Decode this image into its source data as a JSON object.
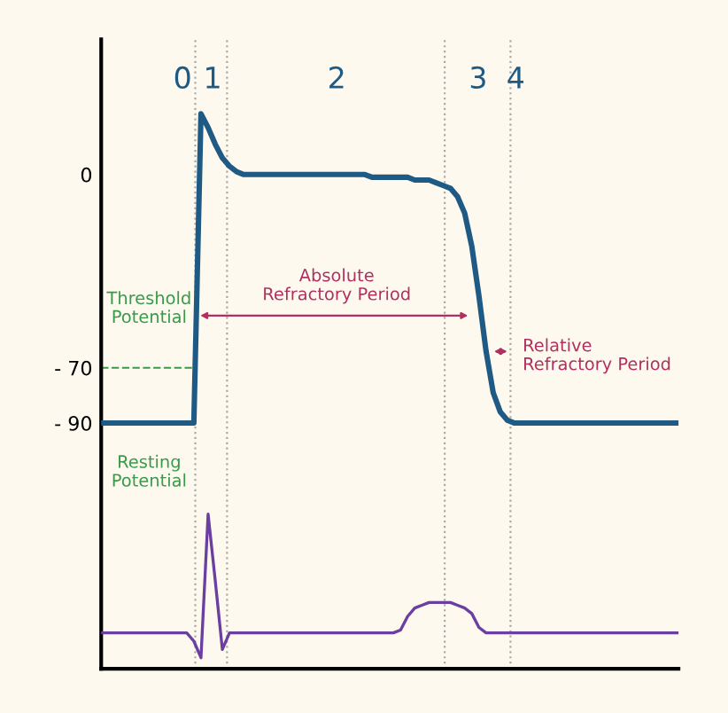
{
  "chart_data": {
    "type": "line",
    "categories": [
      null,
      null,
      null,
      null,
      null,
      null,
      null,
      null,
      null,
      null,
      null,
      null,
      null,
      null,
      null,
      null,
      null,
      null,
      null,
      null,
      null,
      null,
      null,
      null,
      null,
      null,
      null,
      null,
      null,
      null,
      null,
      null,
      null,
      null,
      null,
      null,
      null,
      null,
      null,
      null,
      null,
      null,
      null,
      null,
      null,
      null,
      null,
      null,
      null,
      null,
      null,
      null,
      null,
      null,
      null,
      null,
      null,
      null,
      null,
      null,
      null,
      null,
      null,
      null,
      null,
      null,
      null,
      null,
      null,
      null,
      null,
      null,
      null,
      null,
      null,
      null,
      null,
      null,
      null,
      null,
      null,
      null
    ],
    "ylim": [
      -179,
      49
    ],
    "yticks": [
      {
        "value": 0,
        "label": "0"
      },
      {
        "value": -70,
        "label": "- 70"
      },
      {
        "value": -90,
        "label": "- 90"
      }
    ],
    "tick_labels": "y",
    "grid": false,
    "legend": false,
    "line_style": "solid",
    "marker": "none",
    "series": [
      {
        "color": "#1f5a85",
        "values": [
          -90,
          -90,
          -90,
          -90,
          -90,
          -90,
          -90,
          -90,
          -90,
          -90,
          -90,
          -90,
          -90,
          -90,
          22,
          17,
          11,
          6,
          3,
          1,
          0,
          0,
          0,
          0,
          0,
          0,
          0,
          0,
          0,
          0,
          0,
          0,
          0,
          0,
          0,
          0,
          0,
          0,
          -1,
          -1,
          -1,
          -1,
          -1,
          -1,
          -2,
          -2,
          -2,
          -3,
          -4,
          -5,
          -8,
          -14,
          -26,
          -44,
          -64,
          -79,
          -86,
          -89,
          -90,
          -90,
          -90,
          -90,
          -90,
          -90,
          -90,
          -90,
          -90,
          -90,
          -90,
          -90,
          -90,
          -90,
          -90,
          -90,
          -90,
          -90,
          -90,
          -90,
          -90,
          -90,
          -90,
          -90
        ]
      },
      {
        "color": "#6b3fa0",
        "values": [
          -166,
          -166,
          -166,
          -166,
          -166,
          -166,
          -166,
          -166,
          -166,
          -166,
          -166,
          -166,
          -166,
          -169,
          -175,
          -123,
          -147,
          -172,
          -166,
          -166,
          -166,
          -166,
          -166,
          -166,
          -166,
          -166,
          -166,
          -166,
          -166,
          -166,
          -166,
          -166,
          -166,
          -166,
          -166,
          -166,
          -166,
          -166,
          -166,
          -166,
          -166,
          -166,
          -165,
          -160,
          -157,
          -156,
          -155,
          -155,
          -155,
          -155,
          -156,
          -157,
          -159,
          -164,
          -166,
          -166,
          -166,
          -166,
          -166,
          -166,
          -166,
          -166,
          -166,
          -166,
          -166,
          -166,
          -166,
          -166,
          -166,
          -166,
          -166,
          -166,
          -166,
          -166,
          -166,
          -166,
          -166,
          -166,
          -166,
          -166,
          -166,
          -166
        ]
      }
    ],
    "ref_lines": [
      {
        "axis": "y",
        "value": -70,
        "label": "Threshold Potential",
        "color": "#3a9a4a",
        "line_style": "dashed"
      }
    ],
    "annotations": [
      "0",
      "1",
      "2",
      "3",
      "4",
      "Absolute\nRefractory Period",
      "Relative\nRefractory Period",
      "Resting\nPotential"
    ]
  }
}
